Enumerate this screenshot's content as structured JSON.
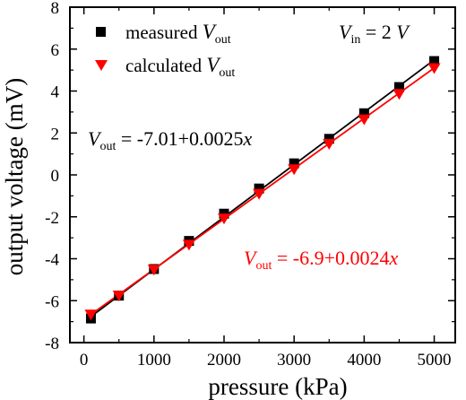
{
  "chart_data": {
    "type": "scatter",
    "xlabel": "pressure (kPa)",
    "ylabel": "output voltage (mV)",
    "xlim": [
      -200,
      5300
    ],
    "ylim": [
      -8,
      8
    ],
    "x_ticks": [
      0,
      1000,
      2000,
      3000,
      4000,
      5000
    ],
    "y_ticks": [
      -8,
      -6,
      -4,
      -2,
      0,
      2,
      4,
      6,
      8
    ],
    "x_tick_labels": [
      "0",
      "1000",
      "2000",
      "3000",
      "4000",
      "5000"
    ],
    "y_tick_labels": [
      "-8",
      "-6",
      "-4",
      "-2",
      "0",
      "2",
      "4",
      "6",
      "8"
    ],
    "grid": false,
    "legend_placement": "top-left",
    "series": [
      {
        "name": "measured V_out",
        "legend": {
          "label": "measured ",
          "var": "V",
          "sub": "out"
        },
        "marker": "square",
        "color": "#000000",
        "x": [
          100,
          500,
          1000,
          1500,
          2000,
          2500,
          3000,
          3500,
          4000,
          4500,
          5000
        ],
        "y": [
          -6.85,
          -5.76,
          -4.49,
          -3.15,
          -1.85,
          -0.65,
          0.55,
          1.72,
          2.94,
          4.19,
          5.43
        ],
        "fit": {
          "intercept": -7.01,
          "slope": 0.0025
        }
      },
      {
        "name": "calculated V_out",
        "legend": {
          "label": "calculated ",
          "var": "V",
          "sub": "out"
        },
        "marker": "triangle-down",
        "color": "#ff0000",
        "x": [
          100,
          500,
          1000,
          1500,
          2000,
          2500,
          3000,
          3500,
          4000,
          4500,
          5000
        ],
        "y": [
          -6.64,
          -5.74,
          -4.5,
          -3.31,
          -2.06,
          -0.88,
          0.29,
          1.5,
          2.67,
          3.88,
          5.11
        ],
        "fit": {
          "intercept": -6.9,
          "slope": 0.0024
        }
      }
    ],
    "annotations": {
      "vin": {
        "var": "V",
        "sub": "in",
        "rest": " = 2 ",
        "unit": "V"
      },
      "eq_measured": {
        "var": "V",
        "sub": "out",
        "rest": " = -7.01+0.0025",
        "x": "x",
        "color": "#000000"
      },
      "eq_calculated": {
        "var": "V",
        "sub": "out",
        "rest": " = -6.9+0.0024",
        "x": "x",
        "color": "#ff0000"
      }
    }
  }
}
